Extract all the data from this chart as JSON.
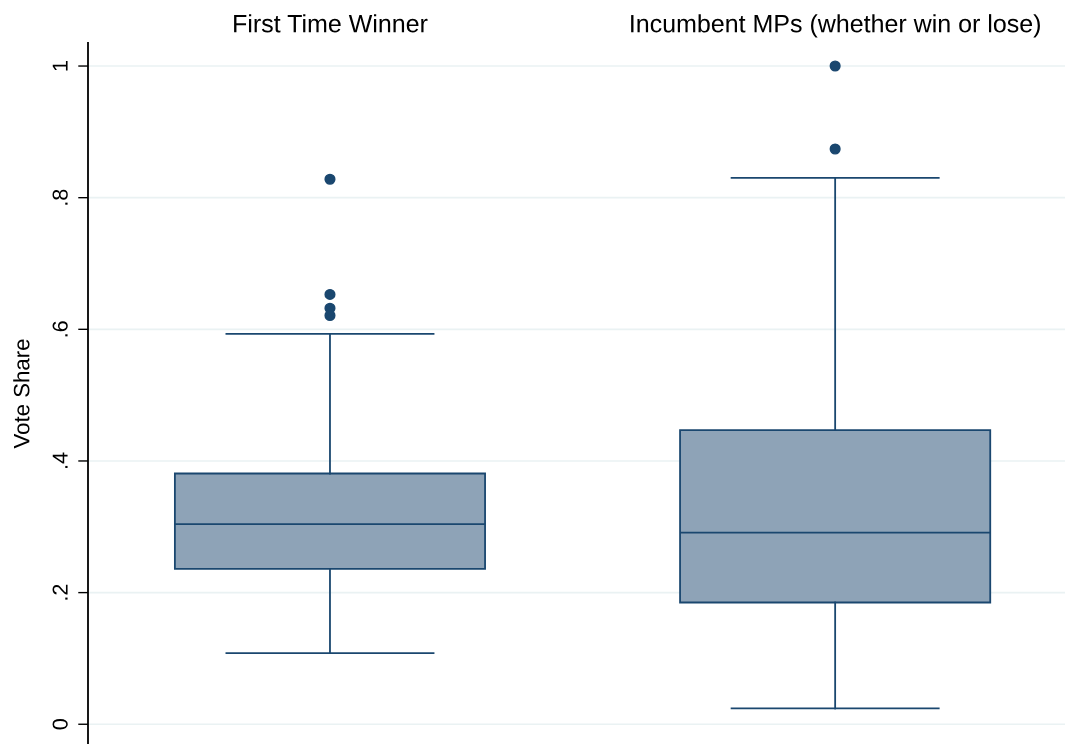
{
  "chart_data": {
    "type": "box",
    "ylabel": "Vote Share",
    "categories": [
      "First Time Winner",
      "Incumbent MPs (whether win or lose)"
    ],
    "series": [
      {
        "color": "#8ea3b7",
        "boxes": [
          {
            "low": 0.108,
            "q1": 0.236,
            "median": 0.304,
            "q3": 0.381,
            "high": 0.593,
            "outliers": [
              0.828,
              0.653,
              0.632,
              0.621
            ]
          },
          {
            "low": 0.024,
            "q1": 0.185,
            "median": 0.291,
            "q3": 0.447,
            "high": 0.83,
            "outliers": [
              1.0,
              0.874
            ]
          }
        ]
      }
    ],
    "ylim": [
      -0.03,
      1.035
    ],
    "yticks": [
      0,
      {
        "value": 0.2,
        "label": ".2"
      },
      {
        "value": 0.4,
        "label": ".4"
      },
      {
        "value": 0.6,
        "label": ".6"
      },
      {
        "value": 0.8,
        "label": ".8"
      },
      1
    ],
    "grid": "y"
  }
}
